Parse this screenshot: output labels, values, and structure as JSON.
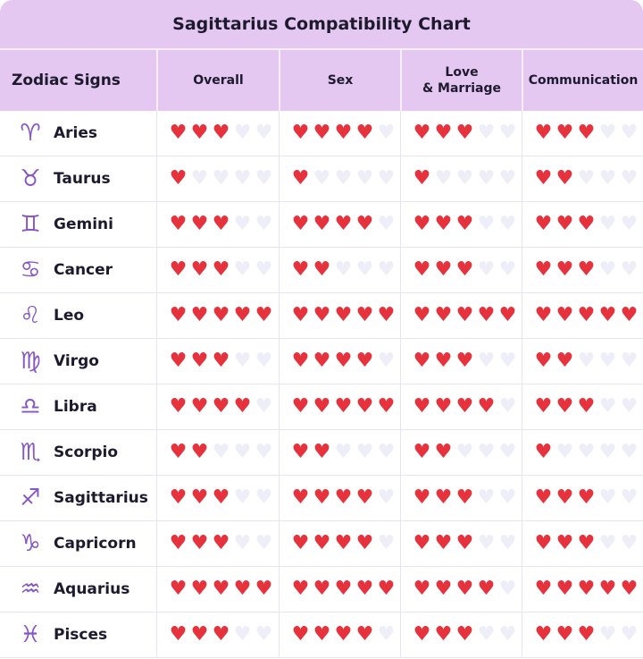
{
  "chart_data": {
    "type": "table",
    "title": "Sagittarius Compatibility Chart",
    "columns": [
      "Zodiac Signs",
      "Overall",
      "Sex",
      "Love\n& Marriage",
      "Communication"
    ],
    "scale_max": 5,
    "colors": {
      "header": "#e4c8f2",
      "heart_filled": "#e5323c",
      "heart_empty": "#eeeef8",
      "glyph": "#8556c4"
    },
    "rows": [
      {
        "sign": "Aries",
        "glyph": "♈",
        "values": [
          3,
          4,
          3,
          3
        ]
      },
      {
        "sign": "Taurus",
        "glyph": "♉",
        "values": [
          1,
          1,
          1,
          2
        ]
      },
      {
        "sign": "Gemini",
        "glyph": "♊",
        "values": [
          3,
          4,
          3,
          3
        ]
      },
      {
        "sign": "Cancer",
        "glyph": "♋",
        "values": [
          3,
          2,
          3,
          3
        ]
      },
      {
        "sign": "Leo",
        "glyph": "♌",
        "values": [
          5,
          5,
          5,
          5
        ]
      },
      {
        "sign": "Virgo",
        "glyph": "♍",
        "values": [
          3,
          4,
          3,
          2
        ]
      },
      {
        "sign": "Libra",
        "glyph": "♎",
        "values": [
          4,
          5,
          4,
          3
        ]
      },
      {
        "sign": "Scorpio",
        "glyph": "♏",
        "values": [
          2,
          2,
          2,
          1
        ]
      },
      {
        "sign": "Sagittarius",
        "glyph": "♐",
        "values": [
          3,
          4,
          3,
          3
        ]
      },
      {
        "sign": "Capricorn",
        "glyph": "♑",
        "values": [
          3,
          4,
          3,
          3
        ]
      },
      {
        "sign": "Aquarius",
        "glyph": "♒",
        "values": [
          5,
          5,
          4,
          5
        ]
      },
      {
        "sign": "Pisces",
        "glyph": "♓",
        "values": [
          3,
          4,
          3,
          3
        ]
      }
    ]
  }
}
